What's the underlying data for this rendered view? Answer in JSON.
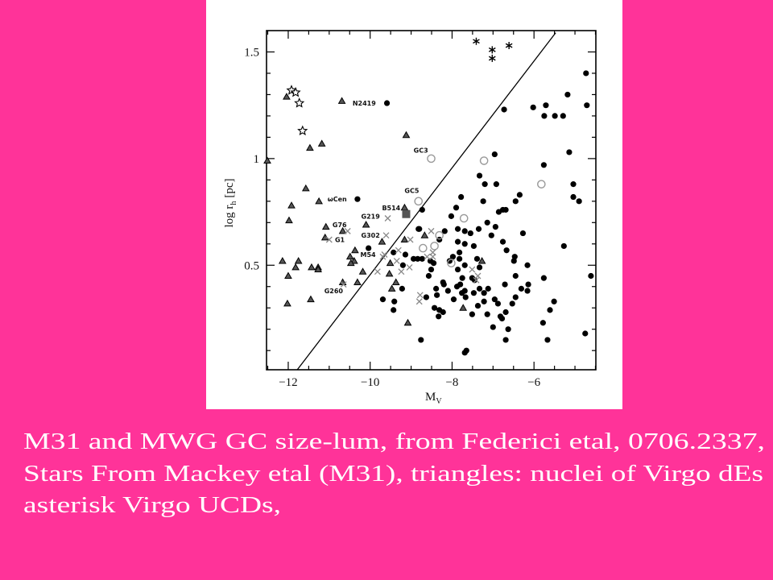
{
  "slide": {
    "background": "#FF3399",
    "caption_lines": [
      "M31 and MWG GC size-lum, from Federici etal, 0706.2337,",
      "Stars From Mackey etal (M31), triangles: nuclei of Virgo dEs",
      "asterisk Virgo UCDs,"
    ]
  },
  "chart_data": {
    "type": "scatter",
    "title": "",
    "xlabel": "M",
    "xlabel_sub": "V",
    "ylabel": "log r",
    "ylabel_sub": "h",
    "ylabel_unit": "[pc]",
    "xlim": [
      -12.53,
      -4.49
    ],
    "ylim": [
      0.01,
      1.6
    ],
    "x_ticks": [
      -12,
      -10,
      -8,
      -6
    ],
    "x_tick_labels": [
      "−12",
      "−10",
      "−8",
      "−6"
    ],
    "y_ticks": [
      0.5,
      1,
      1.5
    ],
    "y_tick_labels": [
      "0.5",
      "1",
      "1.5"
    ],
    "x_minor_step": 0.5,
    "y_minor_step": 0.1,
    "grid": false,
    "legend": "none",
    "reference_line": {
      "x": [
        -11.78,
        -5.47
      ],
      "y": [
        0.01,
        1.59
      ]
    },
    "series": [
      {
        "marker": "filled-circle",
        "color": "#000000",
        "points": [
          [
            -4.73,
            1.4
          ],
          [
            -5.18,
            1.3
          ],
          [
            -5.71,
            1.25
          ],
          [
            -6.02,
            1.24
          ],
          [
            -4.71,
            1.25
          ],
          [
            -5.75,
            1.2
          ],
          [
            -5.49,
            1.2
          ],
          [
            -5.29,
            1.2
          ],
          [
            -6.73,
            1.23
          ],
          [
            -6.96,
            1.02
          ],
          [
            -5.14,
            1.03
          ],
          [
            -5.76,
            0.97
          ],
          [
            -7.33,
            0.92
          ],
          [
            -7.2,
            0.88
          ],
          [
            -6.92,
            0.88
          ],
          [
            -5.04,
            0.88
          ],
          [
            -5.04,
            0.82
          ],
          [
            -4.9,
            0.8
          ],
          [
            -7.78,
            0.82
          ],
          [
            -7.24,
            0.8
          ],
          [
            -6.35,
            0.83
          ],
          [
            -6.45,
            0.8
          ],
          [
            -7.9,
            0.77
          ],
          [
            -8.02,
            0.73
          ],
          [
            -8.73,
            0.76
          ],
          [
            -6.86,
            0.75
          ],
          [
            -6.76,
            0.76
          ],
          [
            -6.69,
            0.76
          ],
          [
            -7.14,
            0.7
          ],
          [
            -6.94,
            0.68
          ],
          [
            -6.27,
            0.65
          ],
          [
            -7.04,
            0.64
          ],
          [
            -8.82,
            0.67
          ],
          [
            -8.18,
            0.66
          ],
          [
            -7.86,
            0.67
          ],
          [
            -7.69,
            0.66
          ],
          [
            -7.55,
            0.65
          ],
          [
            -7.35,
            0.67
          ],
          [
            -8.31,
            0.62
          ],
          [
            -7.86,
            0.61
          ],
          [
            -7.69,
            0.6
          ],
          [
            -7.47,
            0.59
          ],
          [
            -6.76,
            0.61
          ],
          [
            -6.67,
            0.57
          ],
          [
            -5.27,
            0.59
          ],
          [
            -9.43,
            0.56
          ],
          [
            -9.14,
            0.55
          ],
          [
            -8.94,
            0.53
          ],
          [
            -8.84,
            0.53
          ],
          [
            -8.73,
            0.53
          ],
          [
            -8.53,
            0.52
          ],
          [
            -8.45,
            0.51
          ],
          [
            -7.98,
            0.54
          ],
          [
            -7.82,
            0.56
          ],
          [
            -7.82,
            0.53
          ],
          [
            -7.39,
            0.53
          ],
          [
            -6.47,
            0.54
          ],
          [
            -6.49,
            0.52
          ],
          [
            -9.2,
            0.5
          ],
          [
            -8.51,
            0.48
          ],
          [
            -8.57,
            0.45
          ],
          [
            -8.06,
            0.52
          ],
          [
            -7.86,
            0.48
          ],
          [
            -7.69,
            0.5
          ],
          [
            -7.33,
            0.49
          ],
          [
            -6.16,
            0.5
          ],
          [
            -4.61,
            0.45
          ],
          [
            -8.22,
            0.42
          ],
          [
            -8.2,
            0.41
          ],
          [
            -8.39,
            0.39
          ],
          [
            -8.37,
            0.36
          ],
          [
            -8.1,
            0.38
          ],
          [
            -7.88,
            0.4
          ],
          [
            -7.8,
            0.41
          ],
          [
            -7.75,
            0.44
          ],
          [
            -7.51,
            0.44
          ],
          [
            -7.45,
            0.43
          ],
          [
            -7.33,
            0.39
          ],
          [
            -7.22,
            0.37
          ],
          [
            -7.12,
            0.39
          ],
          [
            -7.69,
            0.38
          ],
          [
            -7.76,
            0.37
          ],
          [
            -7.47,
            0.37
          ],
          [
            -6.71,
            0.41
          ],
          [
            -6.45,
            0.45
          ],
          [
            -6.14,
            0.41
          ],
          [
            -6.31,
            0.39
          ],
          [
            -6.16,
            0.38
          ],
          [
            -5.76,
            0.44
          ],
          [
            -9.22,
            0.39
          ],
          [
            -8.63,
            0.35
          ],
          [
            -7.96,
            0.34
          ],
          [
            -7.67,
            0.35
          ],
          [
            -7.22,
            0.33
          ],
          [
            -6.96,
            0.34
          ],
          [
            -6.88,
            0.32
          ],
          [
            -6.53,
            0.32
          ],
          [
            -6.45,
            0.35
          ],
          [
            -5.51,
            0.33
          ],
          [
            -9.41,
            0.33
          ],
          [
            -9.43,
            0.29
          ],
          [
            -8.43,
            0.3
          ],
          [
            -8.31,
            0.29
          ],
          [
            -8.22,
            0.28
          ],
          [
            -8.33,
            0.26
          ],
          [
            -7.37,
            0.31
          ],
          [
            -7.51,
            0.27
          ],
          [
            -7.14,
            0.27
          ],
          [
            -6.82,
            0.26
          ],
          [
            -6.78,
            0.25
          ],
          [
            -6.69,
            0.28
          ],
          [
            -5.61,
            0.29
          ],
          [
            -5.78,
            0.23
          ],
          [
            -7.0,
            0.21
          ],
          [
            -6.63,
            0.2
          ],
          [
            -4.75,
            0.18
          ],
          [
            -6.69,
            0.15
          ],
          [
            -5.67,
            0.15
          ],
          [
            -8.76,
            0.15
          ],
          [
            -7.65,
            0.1
          ],
          [
            -7.69,
            0.09
          ],
          [
            -9.59,
            1.26
          ],
          [
            -10.31,
            0.81
          ],
          [
            -10.04,
            0.58
          ],
          [
            -9.69,
            0.34
          ],
          [
            -8.8,
            0.67
          ]
        ]
      },
      {
        "marker": "open-circle",
        "color": "#999999",
        "points": [
          [
            -8.51,
            1.0
          ],
          [
            -7.22,
            0.99
          ],
          [
            -8.82,
            0.8
          ],
          [
            -5.82,
            0.88
          ],
          [
            -7.71,
            0.72
          ],
          [
            -8.31,
            0.64
          ],
          [
            -8.71,
            0.58
          ],
          [
            -8.43,
            0.59
          ],
          [
            -8.02,
            0.51
          ]
        ]
      },
      {
        "marker": "triangle",
        "color": "#555555",
        "points": [
          [
            -12.04,
            1.29
          ],
          [
            -10.69,
            1.27
          ],
          [
            -9.12,
            1.11
          ],
          [
            -11.18,
            1.07
          ],
          [
            -11.47,
            1.05
          ],
          [
            -12.51,
            0.99
          ],
          [
            -11.57,
            0.86
          ],
          [
            -11.25,
            0.8
          ],
          [
            -11.92,
            0.78
          ],
          [
            -11.98,
            0.71
          ],
          [
            -11.08,
            0.68
          ],
          [
            -10.67,
            0.66
          ],
          [
            -11.1,
            0.63
          ],
          [
            -10.1,
            0.69
          ],
          [
            -9.71,
            0.61
          ],
          [
            -9.16,
            0.62
          ],
          [
            -8.67,
            0.64
          ],
          [
            -10.37,
            0.57
          ],
          [
            -10.49,
            0.54
          ],
          [
            -10.39,
            0.52
          ],
          [
            -10.47,
            0.51
          ],
          [
            -12.14,
            0.52
          ],
          [
            -11.75,
            0.52
          ],
          [
            -11.82,
            0.49
          ],
          [
            -12.0,
            0.45
          ],
          [
            -11.43,
            0.49
          ],
          [
            -11.27,
            0.49
          ],
          [
            -11.27,
            0.48
          ],
          [
            -10.18,
            0.47
          ],
          [
            -10.67,
            0.42
          ],
          [
            -10.31,
            0.42
          ],
          [
            -9.51,
            0.51
          ],
          [
            -9.53,
            0.46
          ],
          [
            -9.37,
            0.42
          ],
          [
            -9.47,
            0.39
          ],
          [
            -12.02,
            0.32
          ],
          [
            -11.45,
            0.34
          ],
          [
            -9.08,
            0.23
          ],
          [
            -9.16,
            0.77
          ],
          [
            -7.27,
            0.52
          ],
          [
            -7.73,
            0.3
          ]
        ]
      },
      {
        "marker": "cross",
        "color": "#888888",
        "points": [
          [
            -9.57,
            0.72
          ],
          [
            -9.61,
            0.64
          ],
          [
            -10.55,
            0.66
          ],
          [
            -11.0,
            0.62
          ],
          [
            -9.02,
            0.62
          ],
          [
            -8.51,
            0.66
          ],
          [
            -9.69,
            0.54
          ],
          [
            -9.65,
            0.55
          ],
          [
            -9.31,
            0.57
          ],
          [
            -9.35,
            0.52
          ],
          [
            -9.82,
            0.47
          ],
          [
            -9.24,
            0.47
          ],
          [
            -9.04,
            0.49
          ],
          [
            -8.78,
            0.36
          ],
          [
            -8.8,
            0.33
          ],
          [
            -8.61,
            0.54
          ],
          [
            -8.47,
            0.54
          ],
          [
            -8.47,
            0.56
          ],
          [
            -7.51,
            0.48
          ],
          [
            -7.37,
            0.45
          ],
          [
            -7.41,
            0.43
          ],
          [
            -10.65,
            0.41
          ]
        ]
      },
      {
        "marker": "open-star",
        "color": "#000000",
        "points": [
          [
            -11.92,
            1.32
          ],
          [
            -11.82,
            1.31
          ],
          [
            -11.73,
            1.26
          ],
          [
            -11.65,
            1.13
          ]
        ]
      },
      {
        "marker": "asterisk",
        "color": "#000000",
        "points": [
          [
            -7.41,
            1.55
          ],
          [
            -7.02,
            1.51
          ],
          [
            -7.02,
            1.47
          ],
          [
            -6.61,
            1.53
          ]
        ]
      },
      {
        "marker": "filled-square",
        "color": "#555555",
        "points": [
          [
            -9.12,
            0.74
          ]
        ]
      }
    ],
    "annotations": [
      {
        "text": "N2419",
        "x": -10.43,
        "y": 1.26
      },
      {
        "text": "GC3",
        "x": -8.94,
        "y": 1.04
      },
      {
        "text": "GC5",
        "x": -9.16,
        "y": 0.85
      },
      {
        "text": "B514",
        "x": -9.71,
        "y": 0.77
      },
      {
        "text": "G219",
        "x": -10.22,
        "y": 0.73
      },
      {
        "text": "G302",
        "x": -10.22,
        "y": 0.64
      },
      {
        "text": "ωCen",
        "x": -11.04,
        "y": 0.81
      },
      {
        "text": "G76",
        "x": -10.92,
        "y": 0.69
      },
      {
        "text": "G1",
        "x": -10.86,
        "y": 0.62
      },
      {
        "text": "M54",
        "x": -10.24,
        "y": 0.55
      },
      {
        "text": "G260",
        "x": -11.12,
        "y": 0.38
      }
    ]
  }
}
